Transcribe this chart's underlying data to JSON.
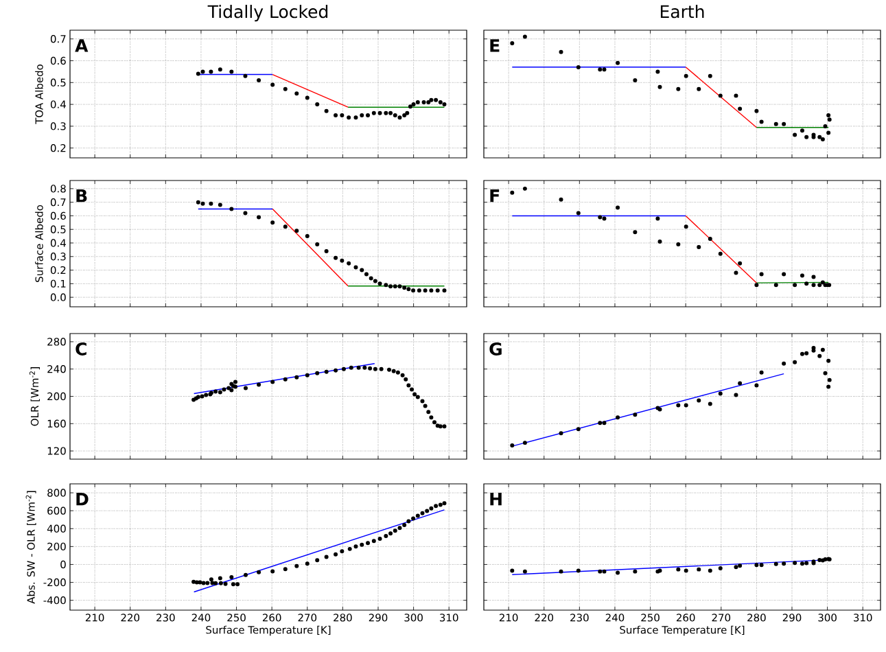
{
  "chart_data": [
    {
      "type": "scatter",
      "title": "Tidally Locked",
      "ylabel": "TOA Albedo",
      "annotations": [
        "A"
      ],
      "xlim": [
        203,
        315
      ],
      "ylim": [
        0.155,
        0.74
      ],
      "xticks": [
        210,
        220,
        230,
        240,
        250,
        260,
        270,
        280,
        290,
        300,
        310
      ],
      "yticks": [
        0.2,
        0.3,
        0.4,
        0.5,
        0.6,
        0.7
      ],
      "grid": true,
      "tick_labels": "y",
      "series": [
        {
          "marker": "circle",
          "color": "#000000",
          "x": [
            239.2,
            240.5,
            242.8,
            245.4,
            248.6,
            252.5,
            256.3,
            260.2,
            263.8,
            267.0,
            270.0,
            272.8,
            275.4,
            278.0,
            279.8,
            281.7,
            283.7,
            285.4,
            287.1,
            288.8,
            290.5,
            292.2,
            293.5,
            294.8,
            296.1,
            297.4,
            298.2,
            299.1,
            300.0,
            301.2,
            302.9,
            304.2,
            305.0,
            306.3,
            307.6,
            308.7
          ],
          "values": [
            0.54,
            0.55,
            0.55,
            0.56,
            0.55,
            0.53,
            0.51,
            0.49,
            0.47,
            0.45,
            0.43,
            0.4,
            0.37,
            0.35,
            0.35,
            0.34,
            0.34,
            0.35,
            0.35,
            0.36,
            0.36,
            0.36,
            0.36,
            0.35,
            0.34,
            0.35,
            0.36,
            0.39,
            0.4,
            0.41,
            0.41,
            0.41,
            0.42,
            0.42,
            0.41,
            0.4
          ]
        },
        {
          "type": "line",
          "color": "#0000ff",
          "x": [
            239.2,
            260.2
          ],
          "values": [
            0.537,
            0.537
          ]
        },
        {
          "type": "line",
          "color": "#ff0000",
          "x": [
            260.2,
            281.5
          ],
          "values": [
            0.537,
            0.387
          ]
        },
        {
          "type": "line",
          "color": "#008000",
          "x": [
            281.5,
            308.7
          ],
          "values": [
            0.387,
            0.387
          ]
        }
      ]
    },
    {
      "type": "scatter",
      "ylabel": "Surface Albedo",
      "annotations": [
        "B"
      ],
      "xlim": [
        203,
        315
      ],
      "ylim": [
        -0.07,
        0.86
      ],
      "xticks": [
        210,
        220,
        230,
        240,
        250,
        260,
        270,
        280,
        290,
        300,
        310
      ],
      "yticks": [
        {
          "value": 0,
          "label": "0.0"
        },
        0.1,
        0.2,
        0.3,
        0.4,
        0.5,
        0.6,
        0.7,
        0.8
      ],
      "grid": true,
      "tick_labels": "y",
      "series": [
        {
          "marker": "circle",
          "color": "#000000",
          "x": [
            239.2,
            240.5,
            242.8,
            245.4,
            248.6,
            252.5,
            256.3,
            260.2,
            263.8,
            267.0,
            270.0,
            272.8,
            275.4,
            278.0,
            279.8,
            281.7,
            283.7,
            285.4,
            286.7,
            288.0,
            289.2,
            290.5,
            292.2,
            293.5,
            294.8,
            296.1,
            297.4,
            298.6,
            299.9,
            301.6,
            303.3,
            305.0,
            306.8,
            308.7
          ],
          "values": [
            0.7,
            0.69,
            0.69,
            0.68,
            0.65,
            0.62,
            0.59,
            0.55,
            0.52,
            0.49,
            0.45,
            0.39,
            0.34,
            0.29,
            0.27,
            0.25,
            0.22,
            0.2,
            0.17,
            0.14,
            0.12,
            0.1,
            0.09,
            0.08,
            0.08,
            0.08,
            0.07,
            0.06,
            0.05,
            0.05,
            0.05,
            0.05,
            0.05,
            0.05
          ]
        },
        {
          "type": "line",
          "color": "#0000ff",
          "x": [
            239.2,
            260.2
          ],
          "values": [
            0.65,
            0.65
          ]
        },
        {
          "type": "line",
          "color": "#ff0000",
          "x": [
            260.2,
            281.5
          ],
          "values": [
            0.65,
            0.083
          ]
        },
        {
          "type": "line",
          "color": "#008000",
          "x": [
            281.5,
            308.7
          ],
          "values": [
            0.083,
            0.083
          ]
        }
      ]
    },
    {
      "type": "scatter",
      "ylabel": "OLR [Wm$^{-2}$]",
      "annotations": [
        "C"
      ],
      "xlim": [
        203,
        315
      ],
      "ylim": [
        108,
        292
      ],
      "xticks": [
        210,
        220,
        230,
        240,
        250,
        260,
        270,
        280,
        290,
        300,
        310
      ],
      "yticks": [
        120,
        160,
        200,
        240,
        280
      ],
      "grid": true,
      "tick_labels": "y",
      "series": [
        {
          "marker": "circle",
          "color": "#000000",
          "x": [
            237.9,
            238.6,
            239.2,
            240.3,
            241.4,
            242.6,
            242.9,
            244.1,
            245.4,
            246.5,
            247.8,
            248.6,
            248.6,
            249.1,
            249.7,
            249.7,
            252.6,
            256.3,
            260.2,
            263.8,
            267.0,
            270.0,
            272.8,
            275.4,
            278.0,
            280.3,
            282.4,
            284.5,
            286.2,
            287.7,
            289.2,
            290.9,
            293.1,
            294.4,
            295.6,
            296.9,
            297.8,
            298.6,
            299.5,
            300.3,
            301.2,
            302.5,
            303.3,
            304.2,
            305.0,
            305.9,
            306.8,
            307.6,
            308.7
          ],
          "values": [
            195,
            197,
            199,
            200,
            202,
            203,
            205,
            207,
            206,
            210,
            212,
            209,
            218,
            215,
            221,
            214,
            212,
            217,
            221,
            225,
            228,
            231,
            234,
            236,
            238,
            240,
            242,
            242,
            242,
            241,
            240,
            240,
            239,
            237,
            235,
            231,
            225,
            216,
            210,
            203,
            199,
            193,
            186,
            177,
            169,
            162,
            157,
            156,
            156
          ]
        },
        {
          "type": "line",
          "color": "#0000ff",
          "x": [
            238.0,
            289.0
          ],
          "values": [
            204,
            248
          ]
        }
      ]
    },
    {
      "type": "scatter",
      "ylabel": "Abs. SW - OLR [Wm$^{-2}$]",
      "xlabel": "Surface Temperature [K]",
      "annotations": [
        "D"
      ],
      "xlim": [
        203,
        315
      ],
      "ylim": [
        -510,
        900
      ],
      "xticks": [
        210,
        220,
        230,
        240,
        250,
        260,
        270,
        280,
        290,
        300,
        310
      ],
      "yticks": [
        -400,
        -200,
        0,
        200,
        400,
        600,
        800
      ],
      "grid": true,
      "series": [
        {
          "marker": "circle",
          "color": "#000000",
          "x": [
            237.9,
            238.8,
            239.7,
            240.7,
            241.8,
            242.9,
            243.2,
            244.1,
            245.4,
            245.6,
            246.9,
            248.6,
            249.1,
            250.3,
            252.6,
            256.3,
            260.2,
            263.8,
            267.0,
            270.0,
            272.8,
            275.4,
            278.0,
            279.8,
            282.0,
            283.7,
            285.4,
            287.1,
            288.8,
            290.5,
            292.2,
            293.5,
            294.8,
            296.1,
            297.4,
            298.6,
            299.9,
            301.2,
            302.5,
            303.8,
            305.0,
            306.3,
            307.6,
            308.7
          ],
          "values": [
            -193,
            -200,
            -200,
            -207,
            -207,
            -167,
            -207,
            -210,
            -153,
            -210,
            -217,
            -143,
            -220,
            -220,
            -117,
            -87,
            -77,
            -53,
            -17,
            10,
            47,
            83,
            113,
            147,
            173,
            200,
            220,
            240,
            263,
            287,
            317,
            347,
            377,
            407,
            440,
            483,
            513,
            543,
            573,
            597,
            627,
            653,
            667,
            683
          ]
        },
        {
          "type": "line",
          "color": "#0000ff",
          "x": [
            238.0,
            308.7
          ],
          "values": [
            -307,
            610
          ]
        }
      ]
    },
    {
      "type": "scatter",
      "title": "Earth",
      "annotations": [
        "E"
      ],
      "xlim": [
        203,
        315
      ],
      "ylim": [
        0.155,
        0.74
      ],
      "xticks": [
        210,
        220,
        230,
        240,
        250,
        260,
        270,
        280,
        290,
        300,
        310
      ],
      "yticks": [
        0.2,
        0.3,
        0.4,
        0.5,
        0.6,
        0.7
      ],
      "grid": true,
      "tick_labels": false,
      "series": [
        {
          "marker": "circle",
          "color": "#000000",
          "x": [
            211.0,
            214.6,
            224.8,
            229.7,
            235.8,
            237.0,
            240.8,
            245.7,
            252.1,
            252.7,
            257.9,
            260.1,
            263.7,
            266.9,
            269.8,
            274.2,
            275.3,
            280.0,
            281.4,
            285.5,
            287.7,
            290.8,
            292.9,
            294.1,
            296.1,
            296.1,
            297.8,
            298.7,
            299.4,
            300.3,
            300.6,
            300.3
          ],
          "values": [
            0.68,
            0.71,
            0.64,
            0.57,
            0.56,
            0.56,
            0.59,
            0.51,
            0.55,
            0.48,
            0.47,
            0.53,
            0.47,
            0.53,
            0.44,
            0.44,
            0.38,
            0.37,
            0.32,
            0.31,
            0.31,
            0.26,
            0.28,
            0.25,
            0.26,
            0.25,
            0.25,
            0.24,
            0.3,
            0.35,
            0.33,
            0.27
          ]
        },
        {
          "type": "line",
          "color": "#0000ff",
          "x": [
            211.0,
            260.0
          ],
          "values": [
            0.571,
            0.571
          ]
        },
        {
          "type": "line",
          "color": "#ff0000",
          "x": [
            260.0,
            280.0
          ],
          "values": [
            0.571,
            0.294
          ]
        },
        {
          "type": "line",
          "color": "#008000",
          "x": [
            280.0,
            300.3
          ],
          "values": [
            0.294,
            0.294
          ]
        }
      ]
    },
    {
      "type": "scatter",
      "annotations": [
        "F"
      ],
      "xlim": [
        203,
        315
      ],
      "ylim": [
        -0.07,
        0.86
      ],
      "xticks": [
        210,
        220,
        230,
        240,
        250,
        260,
        270,
        280,
        290,
        300,
        310
      ],
      "yticks": [
        0,
        0.1,
        0.2,
        0.3,
        0.4,
        0.5,
        0.6,
        0.7,
        0.8
      ],
      "grid": true,
      "tick_labels": false,
      "series": [
        {
          "marker": "circle",
          "color": "#000000",
          "x": [
            211.0,
            214.6,
            224.8,
            229.7,
            235.8,
            237.0,
            240.8,
            245.7,
            252.1,
            252.7,
            257.9,
            260.1,
            263.7,
            266.9,
            269.8,
            274.2,
            275.3,
            280.0,
            281.4,
            285.5,
            287.7,
            290.8,
            292.9,
            294.1,
            296.1,
            296.1,
            297.8,
            298.7,
            299.4,
            300.0,
            300.5
          ],
          "values": [
            0.77,
            0.8,
            0.72,
            0.62,
            0.59,
            0.58,
            0.66,
            0.48,
            0.58,
            0.41,
            0.39,
            0.52,
            0.37,
            0.43,
            0.32,
            0.18,
            0.25,
            0.09,
            0.17,
            0.09,
            0.17,
            0.09,
            0.16,
            0.1,
            0.15,
            0.09,
            0.09,
            0.11,
            0.09,
            0.09,
            0.09
          ]
        },
        {
          "type": "line",
          "color": "#0000ff",
          "x": [
            211.0,
            260.0
          ],
          "values": [
            0.6,
            0.6
          ]
        },
        {
          "type": "line",
          "color": "#ff0000",
          "x": [
            260.0,
            280.0
          ],
          "values": [
            0.6,
            0.106
          ]
        },
        {
          "type": "line",
          "color": "#008000",
          "x": [
            280.0,
            300.3
          ],
          "values": [
            0.106,
            0.11
          ]
        }
      ]
    },
    {
      "type": "scatter",
      "annotations": [
        "G"
      ],
      "xlim": [
        203,
        315
      ],
      "ylim": [
        108,
        292
      ],
      "xticks": [
        210,
        220,
        230,
        240,
        250,
        260,
        270,
        280,
        290,
        300,
        310
      ],
      "yticks": [
        120,
        160,
        200,
        240,
        280
      ],
      "grid": true,
      "tick_labels": false,
      "series": [
        {
          "marker": "circle",
          "color": "#000000",
          "x": [
            211.0,
            214.6,
            224.8,
            229.7,
            235.8,
            237.0,
            240.8,
            245.7,
            252.1,
            252.7,
            257.9,
            260.1,
            263.7,
            266.9,
            269.8,
            274.2,
            275.3,
            280.0,
            281.4,
            287.7,
            290.8,
            292.9,
            294.1,
            296.1,
            296.1,
            297.8,
            298.7,
            299.4,
            300.3,
            300.6,
            300.3
          ],
          "values": [
            128,
            132,
            146,
            152,
            161,
            161,
            169,
            173,
            183,
            181,
            187,
            187,
            194,
            189,
            204,
            202,
            219,
            216,
            235,
            248,
            250,
            262,
            263,
            271,
            267,
            259,
            268,
            234,
            252,
            224,
            214
          ]
        },
        {
          "type": "line",
          "color": "#0000ff",
          "x": [
            211.0,
            287.7
          ],
          "values": [
            127,
            233
          ]
        }
      ]
    },
    {
      "type": "scatter",
      "xlabel": "Surface Temperature [K]",
      "annotations": [
        "H"
      ],
      "xlim": [
        203,
        315
      ],
      "ylim": [
        -510,
        900
      ],
      "xticks": [
        210,
        220,
        230,
        240,
        250,
        260,
        270,
        280,
        290,
        300,
        310
      ],
      "yticks": [
        -400,
        -200,
        0,
        200,
        400,
        600,
        800
      ],
      "grid": true,
      "tick_labels": "x",
      "series": [
        {
          "marker": "circle",
          "color": "#000000",
          "x": [
            211.0,
            214.6,
            224.8,
            229.7,
            235.8,
            237.0,
            240.8,
            245.7,
            252.1,
            252.7,
            257.9,
            260.1,
            263.7,
            266.9,
            269.8,
            274.2,
            275.3,
            280.0,
            281.4,
            285.5,
            287.7,
            290.8,
            292.9,
            294.1,
            296.1,
            296.1,
            297.8,
            298.7,
            299.4,
            300.3,
            300.6
          ],
          "values": [
            -70,
            -78,
            -78,
            -70,
            -78,
            -78,
            -93,
            -78,
            -78,
            -70,
            -55,
            -70,
            -55,
            -70,
            -43,
            -29,
            -14,
            -6,
            -6,
            6,
            9,
            17,
            9,
            14,
            32,
            14,
            49,
            46,
            58,
            61,
            58
          ]
        },
        {
          "type": "line",
          "color": "#0000ff",
          "x": [
            211.0,
            300.5
          ],
          "values": [
            -113,
            52
          ]
        }
      ]
    }
  ]
}
